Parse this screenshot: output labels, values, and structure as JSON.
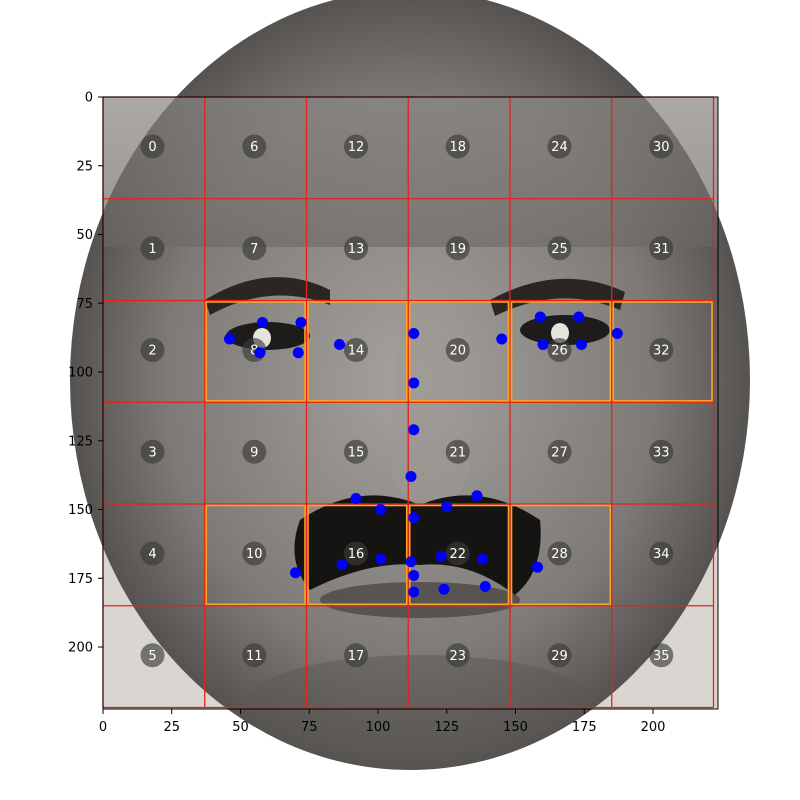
{
  "chart_data": {
    "type": "scatter",
    "title": "",
    "xlabel": "",
    "ylabel": "",
    "xlim": [
      0,
      224
    ],
    "ylim": [
      224,
      0
    ],
    "x_ticks": [
      "0",
      "25",
      "50",
      "75",
      "100",
      "125",
      "150",
      "175",
      "200"
    ],
    "y_ticks": [
      "0",
      "25",
      "50",
      "75",
      "100",
      "125",
      "150",
      "175",
      "200"
    ],
    "x_tick_values": [
      0,
      25,
      50,
      75,
      100,
      125,
      150,
      175,
      200
    ],
    "y_tick_values": [
      0,
      25,
      50,
      75,
      100,
      125,
      150,
      175,
      200
    ],
    "background": "grayscale face photograph",
    "grid": {
      "columns": 6,
      "rows": 6,
      "line_color": "#e8201a",
      "boundaries": [
        0,
        37,
        74,
        111,
        148,
        185,
        222
      ]
    },
    "cells": [
      {
        "label": "0",
        "x": 18,
        "y": 18
      },
      {
        "label": "1",
        "x": 18,
        "y": 55
      },
      {
        "label": "2",
        "x": 18,
        "y": 92
      },
      {
        "label": "3",
        "x": 18,
        "y": 129
      },
      {
        "label": "4",
        "x": 18,
        "y": 166
      },
      {
        "label": "5",
        "x": 18,
        "y": 203
      },
      {
        "label": "6",
        "x": 55,
        "y": 18
      },
      {
        "label": "7",
        "x": 55,
        "y": 55
      },
      {
        "label": "8",
        "x": 55,
        "y": 92
      },
      {
        "label": "9",
        "x": 55,
        "y": 129
      },
      {
        "label": "10",
        "x": 55,
        "y": 166
      },
      {
        "label": "11",
        "x": 55,
        "y": 203
      },
      {
        "label": "12",
        "x": 92,
        "y": 18
      },
      {
        "label": "13",
        "x": 92,
        "y": 55
      },
      {
        "label": "14",
        "x": 92,
        "y": 92
      },
      {
        "label": "15",
        "x": 92,
        "y": 129
      },
      {
        "label": "16",
        "x": 92,
        "y": 166
      },
      {
        "label": "17",
        "x": 92,
        "y": 203
      },
      {
        "label": "18",
        "x": 129,
        "y": 18
      },
      {
        "label": "19",
        "x": 129,
        "y": 55
      },
      {
        "label": "20",
        "x": 129,
        "y": 92
      },
      {
        "label": "21",
        "x": 129,
        "y": 129
      },
      {
        "label": "22",
        "x": 129,
        "y": 166
      },
      {
        "label": "23",
        "x": 129,
        "y": 203
      },
      {
        "label": "24",
        "x": 166,
        "y": 18
      },
      {
        "label": "25",
        "x": 166,
        "y": 55
      },
      {
        "label": "26",
        "x": 166,
        "y": 92
      },
      {
        "label": "27",
        "x": 166,
        "y": 129
      },
      {
        "label": "28",
        "x": 166,
        "y": 166
      },
      {
        "label": "29",
        "x": 166,
        "y": 203
      },
      {
        "label": "30",
        "x": 203,
        "y": 18
      },
      {
        "label": "31",
        "x": 203,
        "y": 55
      },
      {
        "label": "32",
        "x": 203,
        "y": 92
      },
      {
        "label": "33",
        "x": 203,
        "y": 129
      },
      {
        "label": "34",
        "x": 203,
        "y": 166
      },
      {
        "label": "35",
        "x": 203,
        "y": 203
      }
    ],
    "highlighted_cells": [
      "8",
      "14",
      "20",
      "26",
      "32",
      "10",
      "16",
      "22",
      "28"
    ],
    "highlight_color": "#f5a623",
    "landmarks": {
      "color": "#0000ff",
      "points": [
        [
          46,
          88
        ],
        [
          58,
          82
        ],
        [
          57,
          93
        ],
        [
          72,
          82
        ],
        [
          71,
          93
        ],
        [
          86,
          90
        ],
        [
          113,
          86
        ],
        [
          113,
          104
        ],
        [
          113,
          121
        ],
        [
          112,
          138
        ],
        [
          92,
          146
        ],
        [
          101,
          150
        ],
        [
          113,
          153
        ],
        [
          125,
          149
        ],
        [
          136,
          145
        ],
        [
          145,
          88
        ],
        [
          159,
          80
        ],
        [
          160,
          90
        ],
        [
          173,
          80
        ],
        [
          174,
          90
        ],
        [
          187,
          86
        ],
        [
          70,
          173
        ],
        [
          87,
          170
        ],
        [
          101,
          168
        ],
        [
          112,
          169
        ],
        [
          113,
          174
        ],
        [
          113,
          180
        ],
        [
          123,
          167
        ],
        [
          124,
          179
        ],
        [
          138,
          168
        ],
        [
          139,
          178
        ],
        [
          158,
          171
        ]
      ]
    }
  }
}
